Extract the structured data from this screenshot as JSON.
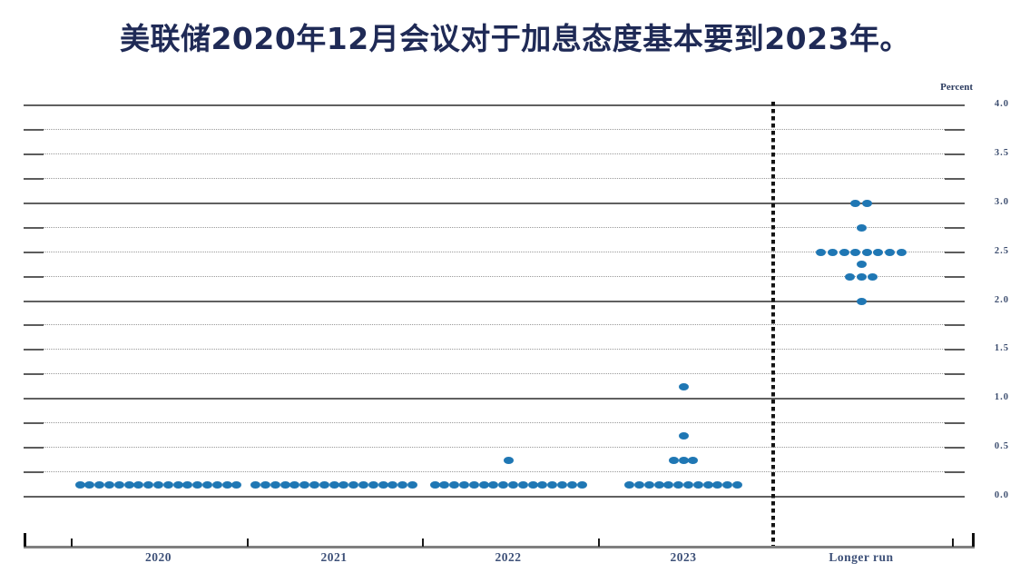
{
  "title": "美联储2020年12月会议对于加息态度基本要到2023年。",
  "title_color": "#1f2a56",
  "chart": {
    "y_axis_label": "Percent"
  },
  "chart_data": {
    "type": "scatter",
    "subtype": "fomc-dot-plot",
    "title": "美联储2020年12月会议对于加息态度基本要到2023年。",
    "ylabel": "Percent",
    "ylim": [
      0.0,
      4.0
    ],
    "y_minor_gridline_step": 0.25,
    "y_tick_labels": [
      "4.0",
      "3.5",
      "3.0",
      "2.5",
      "2.0",
      "1.5",
      "1.0",
      "0.5",
      "0.0"
    ],
    "y_tick_values": [
      4.0,
      3.5,
      3.0,
      2.5,
      2.0,
      1.5,
      1.0,
      0.5,
      0.0
    ],
    "grid": "on",
    "categories": [
      "2020",
      "2021",
      "2022",
      "2023",
      "Longer run"
    ],
    "separator_after_category": "2023",
    "dot_color": "#1f77b4",
    "series": [
      {
        "category": "2020",
        "dots": [
          {
            "rate": 0.125,
            "count": 17
          }
        ]
      },
      {
        "category": "2021",
        "dots": [
          {
            "rate": 0.125,
            "count": 17
          }
        ]
      },
      {
        "category": "2022",
        "dots": [
          {
            "rate": 0.125,
            "count": 16
          },
          {
            "rate": 0.375,
            "count": 1
          }
        ]
      },
      {
        "category": "2023",
        "dots": [
          {
            "rate": 0.125,
            "count": 12
          },
          {
            "rate": 0.375,
            "count": 3
          },
          {
            "rate": 0.625,
            "count": 1
          },
          {
            "rate": 1.125,
            "count": 1
          }
        ]
      },
      {
        "category": "Longer run",
        "dots": [
          {
            "rate": 2.0,
            "count": 1
          },
          {
            "rate": 2.25,
            "count": 3
          },
          {
            "rate": 2.375,
            "count": 1
          },
          {
            "rate": 2.5,
            "count": 8
          },
          {
            "rate": 2.75,
            "count": 1
          },
          {
            "rate": 3.0,
            "count": 2
          }
        ]
      }
    ]
  }
}
